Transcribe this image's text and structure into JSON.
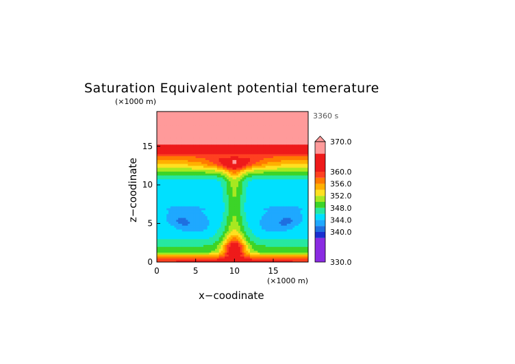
{
  "chart_data": {
    "type": "heatmap",
    "title": "Saturation Equivalent potential temerature",
    "time_label": "3360 s",
    "xlabel": "x−coodinate",
    "ylabel": "z−coodinate",
    "x_unit": "(×1000 m)",
    "y_unit": "(×1000 m)",
    "xlim": [
      0,
      19.5
    ],
    "ylim": [
      0,
      19.5
    ],
    "xticks": [
      0,
      5,
      10,
      15
    ],
    "yticks": [
      0,
      5,
      10,
      15
    ],
    "colorbar": {
      "range": [
        330,
        370
      ],
      "tick_values": [
        370.0,
        360.0,
        356.0,
        352.0,
        348.0,
        344.0,
        340.0,
        330.0
      ],
      "tick_labels": [
        "370.0",
        "360.0",
        "356.0",
        "352.0",
        "348.0",
        "344.0",
        "340.0",
        "330.0"
      ],
      "levels": [
        {
          "min": 330,
          "max": 338,
          "color": "#8a2be2"
        },
        {
          "min": 338,
          "max": 340,
          "color": "#1a2fd0"
        },
        {
          "min": 340,
          "max": 342,
          "color": "#1f6fe0"
        },
        {
          "min": 342,
          "max": 344,
          "color": "#1fa8ff"
        },
        {
          "min": 344,
          "max": 346,
          "color": "#00e0ff"
        },
        {
          "min": 346,
          "max": 348,
          "color": "#26e8a0"
        },
        {
          "min": 348,
          "max": 350,
          "color": "#3cd428"
        },
        {
          "min": 350,
          "max": 352,
          "color": "#a8e820"
        },
        {
          "min": 352,
          "max": 354,
          "color": "#ffe020"
        },
        {
          "min": 354,
          "max": 356,
          "color": "#ffb000"
        },
        {
          "min": 356,
          "max": 358,
          "color": "#ff7a00"
        },
        {
          "min": 358,
          "max": 360,
          "color": "#ff4020"
        },
        {
          "min": 360,
          "max": 366,
          "color": "#ee1a1a"
        },
        {
          "min": 366,
          "max": 370,
          "color": "#ff9a9a"
        }
      ]
    }
  }
}
